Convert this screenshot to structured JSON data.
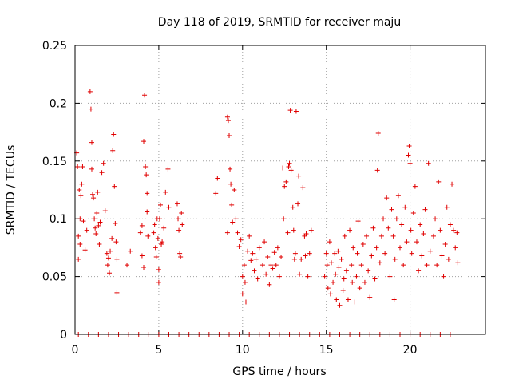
{
  "chart_data": {
    "type": "scatter",
    "title": "Day 118 of 2019, SRMTID for receiver maju",
    "xlabel": "GPS time / hours",
    "ylabel": "SRMTID / TECUs",
    "xlim": [
      0,
      24.5
    ],
    "ylim": [
      0,
      0.25
    ],
    "xticks": [
      0,
      5,
      10,
      15,
      20
    ],
    "xtick_labels": [
      "0",
      "5",
      "10",
      "15",
      "20"
    ],
    "yticks": [
      0,
      0.05,
      0.1,
      0.15,
      0.2,
      0.25
    ],
    "ytick_labels": [
      "0",
      "0.05",
      "0.1",
      "0.15",
      "0.2",
      "0.25"
    ],
    "grid": true,
    "marker": "+",
    "color": "#e00000",
    "series": [
      {
        "name": "SRMTID",
        "points": [
          [
            0.1,
            0.157
          ],
          [
            0.15,
            0.145
          ],
          [
            0.2,
            0.085
          ],
          [
            0.2,
            0.065
          ],
          [
            0.25,
            0.125
          ],
          [
            0.3,
            0.1
          ],
          [
            0.3,
            0.078
          ],
          [
            0.35,
            0.12
          ],
          [
            0.4,
            0.13
          ],
          [
            0.45,
            0.145
          ],
          [
            0.5,
            0.098
          ],
          [
            0.6,
            0.073
          ],
          [
            0.7,
            0.09
          ],
          [
            0.9,
            0.21
          ],
          [
            0.95,
            0.195
          ],
          [
            1.0,
            0.166
          ],
          [
            1.0,
            0.143
          ],
          [
            1.05,
            0.121
          ],
          [
            1.1,
            0.118
          ],
          [
            1.15,
            0.1
          ],
          [
            1.2,
            0.092
          ],
          [
            1.25,
            0.087
          ],
          [
            1.3,
            0.105
          ],
          [
            1.35,
            0.123
          ],
          [
            1.4,
            0.094
          ],
          [
            1.45,
            0.078
          ],
          [
            1.5,
            0.097
          ],
          [
            1.6,
            0.14
          ],
          [
            1.7,
            0.148
          ],
          [
            1.8,
            0.107
          ],
          [
            1.9,
            0.07
          ],
          [
            1.95,
            0.06
          ],
          [
            2.0,
            0.066
          ],
          [
            2.05,
            0.053
          ],
          [
            2.1,
            0.072
          ],
          [
            2.2,
            0.083
          ],
          [
            2.25,
            0.159
          ],
          [
            2.3,
            0.173
          ],
          [
            2.35,
            0.128
          ],
          [
            2.4,
            0.096
          ],
          [
            2.45,
            0.08
          ],
          [
            2.5,
            0.065
          ],
          [
            2.5,
            0.036
          ],
          [
            3.1,
            0.06
          ],
          [
            3.3,
            0.072
          ],
          [
            3.9,
            0.088
          ],
          [
            4.0,
            0.094
          ],
          [
            4.1,
            0.167
          ],
          [
            4.15,
            0.207
          ],
          [
            4.2,
            0.145
          ],
          [
            4.25,
            0.138
          ],
          [
            4.3,
            0.122
          ],
          [
            4.3,
            0.106
          ],
          [
            4.35,
            0.085
          ],
          [
            4.1,
            0.058
          ],
          [
            4.0,
            0.068
          ],
          [
            4.7,
            0.088
          ],
          [
            4.75,
            0.095
          ],
          [
            4.8,
            0.075
          ],
          [
            4.85,
            0.067
          ],
          [
            4.9,
            0.1
          ],
          [
            4.95,
            0.083
          ],
          [
            5.0,
            0.056
          ],
          [
            5.0,
            0.045
          ],
          [
            5.05,
            0.1
          ],
          [
            5.1,
            0.112
          ],
          [
            5.15,
            0.078
          ],
          [
            5.2,
            0.08
          ],
          [
            5.3,
            0.092
          ],
          [
            5.4,
            0.123
          ],
          [
            5.55,
            0.143
          ],
          [
            5.6,
            0.11
          ],
          [
            6.1,
            0.113
          ],
          [
            6.15,
            0.1
          ],
          [
            6.2,
            0.09
          ],
          [
            6.25,
            0.07
          ],
          [
            6.3,
            0.067
          ],
          [
            6.35,
            0.105
          ],
          [
            6.4,
            0.095
          ],
          [
            8.4,
            0.122
          ],
          [
            8.5,
            0.135
          ],
          [
            9.1,
            0.188
          ],
          [
            9.15,
            0.185
          ],
          [
            9.2,
            0.172
          ],
          [
            9.25,
            0.143
          ],
          [
            9.3,
            0.13
          ],
          [
            9.35,
            0.112
          ],
          [
            9.4,
            0.097
          ],
          [
            9.5,
            0.125
          ],
          [
            9.6,
            0.1
          ],
          [
            9.7,
            0.088
          ],
          [
            9.1,
            0.088
          ],
          [
            9.8,
            0.076
          ],
          [
            9.9,
            0.082
          ],
          [
            10.0,
            0.05
          ],
          [
            10.0,
            0.035
          ],
          [
            10.1,
            0.06
          ],
          [
            10.15,
            0.045
          ],
          [
            10.2,
            0.028
          ],
          [
            10.3,
            0.072
          ],
          [
            10.4,
            0.085
          ],
          [
            10.5,
            0.064
          ],
          [
            10.6,
            0.07
          ],
          [
            10.7,
            0.055
          ],
          [
            10.8,
            0.065
          ],
          [
            10.9,
            0.048
          ],
          [
            11.0,
            0.075
          ],
          [
            11.2,
            0.06
          ],
          [
            11.3,
            0.08
          ],
          [
            11.4,
            0.052
          ],
          [
            11.5,
            0.067
          ],
          [
            11.6,
            0.043
          ],
          [
            11.7,
            0.06
          ],
          [
            11.8,
            0.057
          ],
          [
            11.9,
            0.071
          ],
          [
            12.0,
            0.06
          ],
          [
            12.1,
            0.075
          ],
          [
            12.2,
            0.05
          ],
          [
            12.3,
            0.067
          ],
          [
            12.4,
            0.144
          ],
          [
            12.45,
            0.1
          ],
          [
            12.5,
            0.128
          ],
          [
            12.6,
            0.132
          ],
          [
            12.7,
            0.088
          ],
          [
            12.75,
            0.145
          ],
          [
            12.8,
            0.148
          ],
          [
            12.85,
            0.194
          ],
          [
            12.9,
            0.142
          ],
          [
            13.0,
            0.11
          ],
          [
            13.05,
            0.09
          ],
          [
            13.1,
            0.065
          ],
          [
            13.15,
            0.07
          ],
          [
            13.2,
            0.193
          ],
          [
            13.3,
            0.113
          ],
          [
            13.35,
            0.137
          ],
          [
            13.4,
            0.052
          ],
          [
            13.5,
            0.065
          ],
          [
            13.6,
            0.127
          ],
          [
            13.7,
            0.085
          ],
          [
            13.75,
            0.068
          ],
          [
            13.8,
            0.087
          ],
          [
            13.9,
            0.05
          ],
          [
            14.0,
            0.07
          ],
          [
            14.1,
            0.09
          ],
          [
            14.9,
            0.05
          ],
          [
            15.0,
            0.07
          ],
          [
            15.05,
            0.06
          ],
          [
            15.1,
            0.04
          ],
          [
            15.2,
            0.08
          ],
          [
            15.25,
            0.035
          ],
          [
            15.3,
            0.062
          ],
          [
            15.4,
            0.045
          ],
          [
            15.5,
            0.07
          ],
          [
            15.55,
            0.052
          ],
          [
            15.6,
            0.03
          ],
          [
            15.7,
            0.072
          ],
          [
            15.75,
            0.058
          ],
          [
            15.8,
            0.025
          ],
          [
            15.9,
            0.065
          ],
          [
            16.0,
            0.038
          ],
          [
            16.05,
            0.048
          ],
          [
            16.1,
            0.085
          ],
          [
            16.2,
            0.055
          ],
          [
            16.3,
            0.03
          ],
          [
            16.4,
            0.09
          ],
          [
            16.5,
            0.06
          ],
          [
            16.55,
            0.045
          ],
          [
            16.6,
            0.075
          ],
          [
            16.7,
            0.028
          ],
          [
            16.8,
            0.05
          ],
          [
            16.85,
            0.07
          ],
          [
            16.9,
            0.098
          ],
          [
            17.0,
            0.04
          ],
          [
            17.1,
            0.06
          ],
          [
            17.2,
            0.078
          ],
          [
            17.3,
            0.045
          ],
          [
            17.4,
            0.085
          ],
          [
            17.5,
            0.055
          ],
          [
            17.6,
            0.032
          ],
          [
            17.7,
            0.068
          ],
          [
            17.8,
            0.092
          ],
          [
            17.9,
            0.048
          ],
          [
            18.0,
            0.075
          ],
          [
            18.05,
            0.142
          ],
          [
            18.1,
            0.174
          ],
          [
            18.2,
            0.062
          ],
          [
            18.3,
            0.085
          ],
          [
            18.4,
            0.1
          ],
          [
            18.5,
            0.07
          ],
          [
            18.6,
            0.118
          ],
          [
            18.7,
            0.092
          ],
          [
            18.8,
            0.05
          ],
          [
            18.9,
            0.108
          ],
          [
            19.0,
            0.085
          ],
          [
            19.05,
            0.03
          ],
          [
            19.1,
            0.065
          ],
          [
            19.2,
            0.1
          ],
          [
            19.3,
            0.12
          ],
          [
            19.4,
            0.075
          ],
          [
            19.5,
            0.095
          ],
          [
            19.6,
            0.06
          ],
          [
            19.7,
            0.11
          ],
          [
            19.8,
            0.08
          ],
          [
            19.9,
            0.155
          ],
          [
            19.95,
            0.163
          ],
          [
            20.0,
            0.148
          ],
          [
            20.05,
            0.09
          ],
          [
            20.1,
            0.07
          ],
          [
            20.2,
            0.105
          ],
          [
            20.3,
            0.128
          ],
          [
            20.4,
            0.08
          ],
          [
            20.5,
            0.055
          ],
          [
            20.6,
            0.095
          ],
          [
            20.7,
            0.068
          ],
          [
            20.8,
            0.087
          ],
          [
            20.9,
            0.108
          ],
          [
            21.0,
            0.06
          ],
          [
            21.1,
            0.148
          ],
          [
            21.2,
            0.072
          ],
          [
            21.4,
            0.085
          ],
          [
            21.5,
            0.1
          ],
          [
            21.6,
            0.06
          ],
          [
            21.7,
            0.132
          ],
          [
            21.8,
            0.09
          ],
          [
            21.9,
            0.068
          ],
          [
            22.0,
            0.05
          ],
          [
            22.1,
            0.078
          ],
          [
            22.2,
            0.11
          ],
          [
            22.3,
            0.065
          ],
          [
            22.4,
            0.095
          ],
          [
            22.5,
            0.13
          ],
          [
            22.6,
            0.09
          ],
          [
            22.7,
            0.075
          ],
          [
            22.8,
            0.088
          ],
          [
            22.85,
            0.062
          ],
          [
            0.2,
            0
          ],
          [
            0.8,
            0
          ],
          [
            1.4,
            0
          ],
          [
            2.0,
            0
          ],
          [
            2.6,
            0
          ],
          [
            3.2,
            0
          ],
          [
            3.8,
            0
          ],
          [
            4.4,
            0
          ],
          [
            5.0,
            0
          ],
          [
            5.6,
            0
          ],
          [
            6.2,
            0
          ],
          [
            6.8,
            0
          ],
          [
            7.4,
            0
          ],
          [
            8.0,
            0
          ],
          [
            8.6,
            0
          ],
          [
            9.2,
            0
          ],
          [
            9.8,
            0
          ],
          [
            10.4,
            0
          ],
          [
            11.0,
            0
          ],
          [
            11.6,
            0
          ],
          [
            12.2,
            0
          ],
          [
            12.8,
            0
          ],
          [
            13.4,
            0
          ],
          [
            14.0,
            0
          ],
          [
            14.6,
            0
          ],
          [
            15.2,
            0
          ],
          [
            15.8,
            0
          ],
          [
            16.4,
            0
          ],
          [
            17.0,
            0
          ],
          [
            17.6,
            0
          ],
          [
            18.2,
            0
          ],
          [
            18.8,
            0
          ],
          [
            19.4,
            0
          ],
          [
            20.0,
            0
          ],
          [
            20.6,
            0
          ],
          [
            21.2,
            0
          ],
          [
            21.8,
            0
          ],
          [
            22.4,
            0
          ]
        ]
      }
    ]
  }
}
